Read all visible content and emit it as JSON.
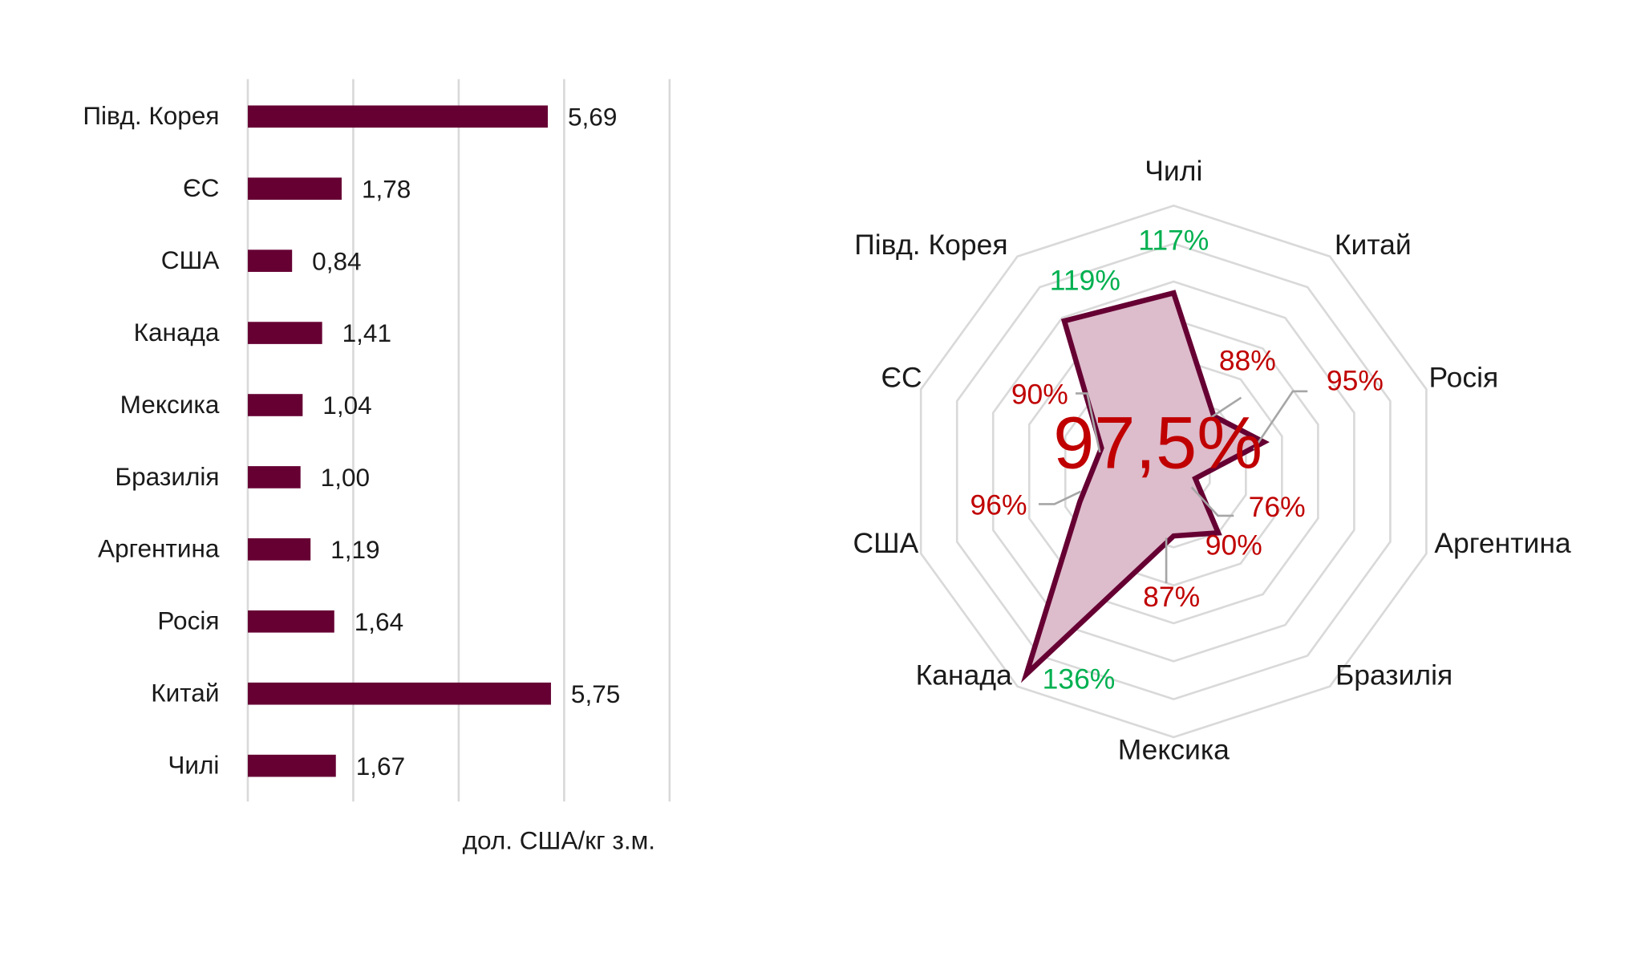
{
  "chart_data": [
    {
      "type": "bar",
      "orientation": "horizontal",
      "categories": [
        "Півд. Корея",
        "ЄС",
        "США",
        "Канада",
        "Мексика",
        "Бразилія",
        "Аргентина",
        "Росія",
        "Китай",
        "Чилі"
      ],
      "values": [
        5.69,
        1.78,
        0.84,
        1.41,
        1.04,
        1.0,
        1.19,
        1.64,
        5.75,
        1.67
      ],
      "value_labels": [
        "5,69",
        "1,78",
        "0,84",
        "1,41",
        "1,04",
        "1,00",
        "1,19",
        "1,64",
        "5,75",
        "1,67"
      ],
      "xlabel": "дол. США/кг з.м.",
      "xlim": [
        0,
        8
      ],
      "grid_step": 2,
      "grid": true,
      "bar_color": "#660033"
    },
    {
      "type": "radar",
      "categories": [
        "Чилі",
        "Китай",
        "Росія",
        "Аргентина",
        "Бразилія",
        "Мексика",
        "Канада",
        "США",
        "ЄС",
        "Півд. Корея"
      ],
      "values": [
        117,
        88,
        95,
        76,
        90,
        87,
        136,
        96,
        90,
        119
      ],
      "value_labels": [
        "117%",
        "88%",
        "95%",
        "76%",
        "90%",
        "87%",
        "136%",
        "96%",
        "90%",
        "119%"
      ],
      "rlim": [
        70,
        140
      ],
      "ring_step": 10,
      "center_label": "97,5%",
      "stroke_color": "#660033",
      "fill_color": "#ddbccb",
      "above_color": "#00b050",
      "below_color": "#c00000"
    }
  ]
}
